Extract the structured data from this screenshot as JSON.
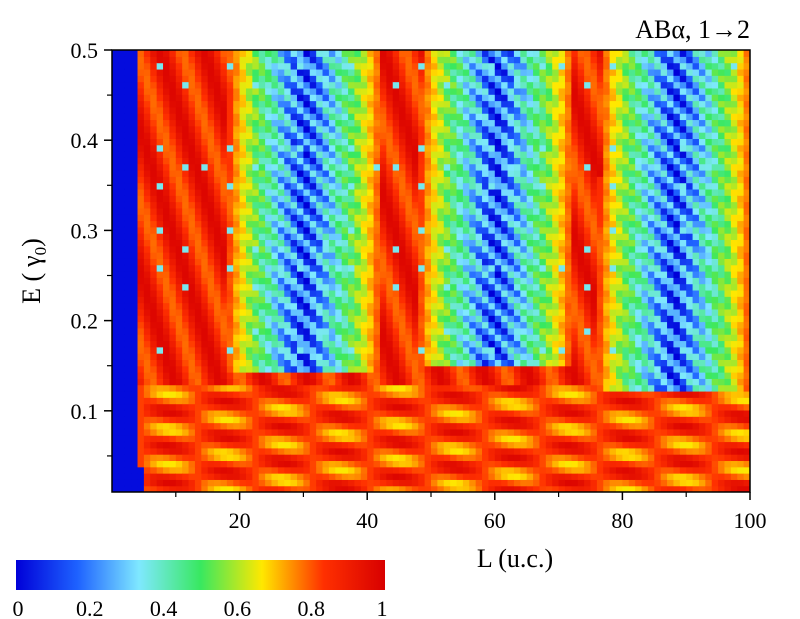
{
  "chart_data": {
    "type": "heatmap",
    "panel_label": "ABα, 1→2",
    "xlabel": "L (u.c.)",
    "ylabel_main": "E (",
    "ylabel_symbol": "γ",
    "ylabel_sub": "0",
    "ylabel_close": ")",
    "xlim": [
      0,
      100
    ],
    "ylim": [
      0.01,
      0.5
    ],
    "x_ticks": [
      20,
      40,
      60,
      80,
      100
    ],
    "x_tick_labels": [
      "20",
      "40",
      "60",
      "80",
      "100"
    ],
    "y_ticks": [
      0.1,
      0.2,
      0.3,
      0.4,
      0.5
    ],
    "y_tick_labels": [
      "0.1",
      "0.2",
      "0.3",
      "0.4",
      "0.5"
    ],
    "value_range": [
      0,
      1
    ],
    "colorbar": {
      "ticks": [
        0,
        0.2,
        0.4,
        0.6,
        0.8,
        1
      ],
      "tick_labels": [
        "0",
        "0.2",
        "0.4",
        "0.6",
        "0.8",
        "1"
      ],
      "colors": [
        "#0000d8",
        "#1e62ff",
        "#7fe8ff",
        "#38e860",
        "#ffe800",
        "#ff3000",
        "#d80000"
      ]
    },
    "low_transmission_bands": [
      {
        "x_range": [
          18,
          42
        ],
        "y_range": [
          0.14,
          0.5
        ],
        "value": 0.1
      },
      {
        "x_range": [
          48,
          72
        ],
        "y_range": [
          0.15,
          0.5
        ],
        "value": 0.12
      },
      {
        "x_range": [
          76,
          100
        ],
        "y_range": [
          0.12,
          0.5
        ],
        "value": 0.1
      }
    ],
    "edge_region": {
      "x_range": [
        0,
        5
      ],
      "y_range": [
        0.01,
        0.5
      ],
      "value": 0.0
    }
  }
}
